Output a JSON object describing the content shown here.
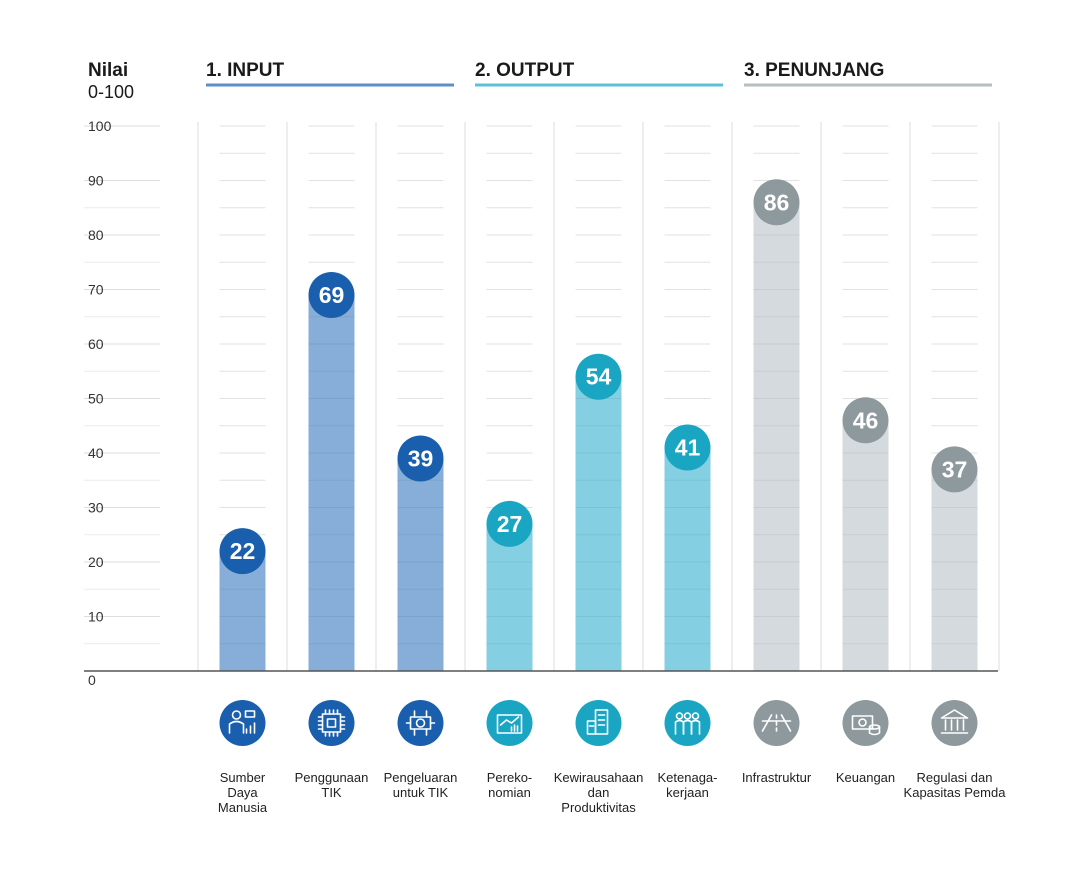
{
  "chart_data": {
    "type": "bar",
    "ylabel": "Nilai",
    "ylabel_range": "0-100",
    "ylim": [
      0,
      100
    ],
    "yticks": [
      0,
      10,
      20,
      30,
      40,
      50,
      60,
      70,
      80,
      90,
      100
    ],
    "grid": true,
    "groups": [
      {
        "label": "1. INPUT",
        "color": "#1a5fad",
        "bar_color": "#86aed8",
        "line_color": "#5d8fc8",
        "categories": [
          "Sumber Daya Manusia",
          "Penggunaan TIK",
          "Pengeluaran untuk TIK"
        ],
        "values": [
          22,
          69,
          39
        ],
        "icons": [
          "people-chart-icon",
          "chip-icon",
          "money-chip-icon"
        ]
      },
      {
        "label": "2. OUTPUT",
        "color": "#1aa5c2",
        "bar_color": "#85cfe2",
        "line_color": "#5cc0d8",
        "categories": [
          "Perekonomian",
          "Kewirausahaan dan Produktivitas",
          "Ketenagakerjaan"
        ],
        "values": [
          27,
          54,
          41
        ],
        "icons": [
          "economy-chart-icon",
          "office-building-icon",
          "workers-icon"
        ]
      },
      {
        "label": "3. PENUNJANG",
        "color": "#8e999d",
        "bar_color": "#d4dadd",
        "line_color": "#b6bec2",
        "categories": [
          "Infrastruktur",
          "Keuangan",
          "Regulasi dan Kapasitas Pemda"
        ],
        "values": [
          86,
          46,
          37
        ],
        "icons": [
          "road-icon",
          "cash-icon",
          "government-building-icon"
        ]
      }
    ]
  },
  "category_display_lines": [
    [
      "Sumber",
      "Daya",
      "Manusia"
    ],
    [
      "Penggunaan",
      "TIK"
    ],
    [
      "Pengeluaran",
      "untuk TIK"
    ],
    [
      "Pereko-",
      "nomian"
    ],
    [
      "Kewirausahaan",
      "dan",
      "Produktivitas"
    ],
    [
      "Ketenaga-",
      "kerjaan"
    ],
    [
      "Infrastruktur"
    ],
    [
      "Keuangan"
    ],
    [
      "Regulasi dan",
      "Kapasitas Pemda"
    ]
  ]
}
